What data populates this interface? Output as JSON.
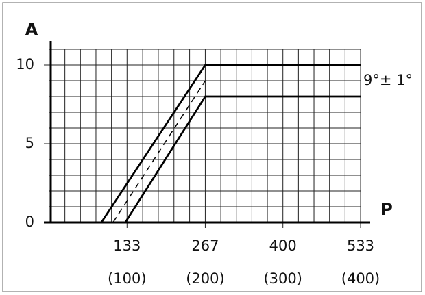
{
  "chart_data": {
    "type": "line",
    "y_label": "A",
    "x_label": "P",
    "annotation": "9°± 1°",
    "xlim": [
      0,
      533
    ],
    "ylim": [
      0,
      11
    ],
    "xticks": [
      133,
      267,
      400,
      533
    ],
    "xtick_sublabels": [
      "(100)",
      "(200)",
      "(300)",
      "(400)"
    ],
    "yticks": [
      0,
      5,
      10
    ],
    "grid": true,
    "series": [
      {
        "color": "#000000",
        "style": "solid",
        "x": [
          89,
          267,
          533
        ],
        "values": [
          0,
          10,
          10
        ]
      },
      {
        "color": "#000000",
        "style": "dashed",
        "x": [
          109,
          267
        ],
        "values": [
          0,
          9
        ]
      },
      {
        "color": "#000000",
        "style": "solid",
        "x": [
          130,
          267,
          533
        ],
        "values": [
          0,
          8,
          8
        ]
      }
    ]
  }
}
